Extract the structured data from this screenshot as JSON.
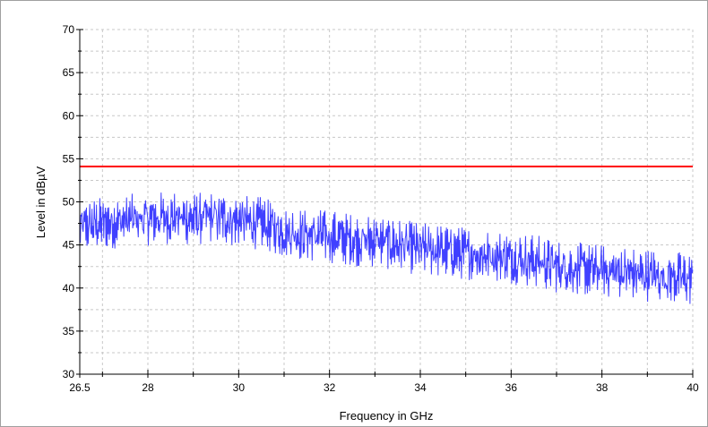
{
  "chart_data": {
    "type": "line",
    "xlabel": "Frequency in GHz",
    "ylabel": "Level in dBµV",
    "xlim": [
      26.5,
      40
    ],
    "ylim": [
      30,
      70
    ],
    "x_ticks": [
      {
        "value": 26.5,
        "label": "26.5"
      },
      {
        "value": 28,
        "label": "28"
      },
      {
        "value": 30,
        "label": "30"
      },
      {
        "value": 32,
        "label": "32"
      },
      {
        "value": 34,
        "label": "34"
      },
      {
        "value": 36,
        "label": "36"
      },
      {
        "value": 38,
        "label": "38"
      },
      {
        "value": 40,
        "label": "40"
      }
    ],
    "y_ticks": [
      {
        "value": 30,
        "label": "30"
      },
      {
        "value": 35,
        "label": "35"
      },
      {
        "value": 40,
        "label": "40"
      },
      {
        "value": 45,
        "label": "45"
      },
      {
        "value": 50,
        "label": "50"
      },
      {
        "value": 55,
        "label": "55"
      },
      {
        "value": 60,
        "label": "60"
      },
      {
        "value": 65,
        "label": "65"
      },
      {
        "value": 70,
        "label": "70"
      }
    ],
    "grid": true,
    "series": [
      {
        "kind": "limit",
        "color": "#ff0000",
        "x": [
          26.5,
          40
        ],
        "y": [
          54.1,
          54.1
        ]
      },
      {
        "kind": "measurement",
        "color": "#4040ff",
        "x": [
          26.5,
          27,
          27.5,
          28,
          28.5,
          29,
          29.5,
          30,
          30.5,
          31,
          31.5,
          32,
          32.5,
          33,
          33.5,
          34,
          34.5,
          35,
          35.5,
          36,
          36.5,
          37,
          37.5,
          38,
          38.5,
          39,
          39.5,
          40
        ],
        "y": [
          47,
          47.5,
          47.8,
          48,
          48.2,
          48,
          48.2,
          47.8,
          47.5,
          46.5,
          46.2,
          46,
          45.6,
          45.5,
          45,
          44.5,
          44.3,
          44,
          43.8,
          43.5,
          43.2,
          42.5,
          42.2,
          42,
          41.8,
          41.5,
          41.3,
          41
        ],
        "ripple": 2.2
      }
    ]
  }
}
